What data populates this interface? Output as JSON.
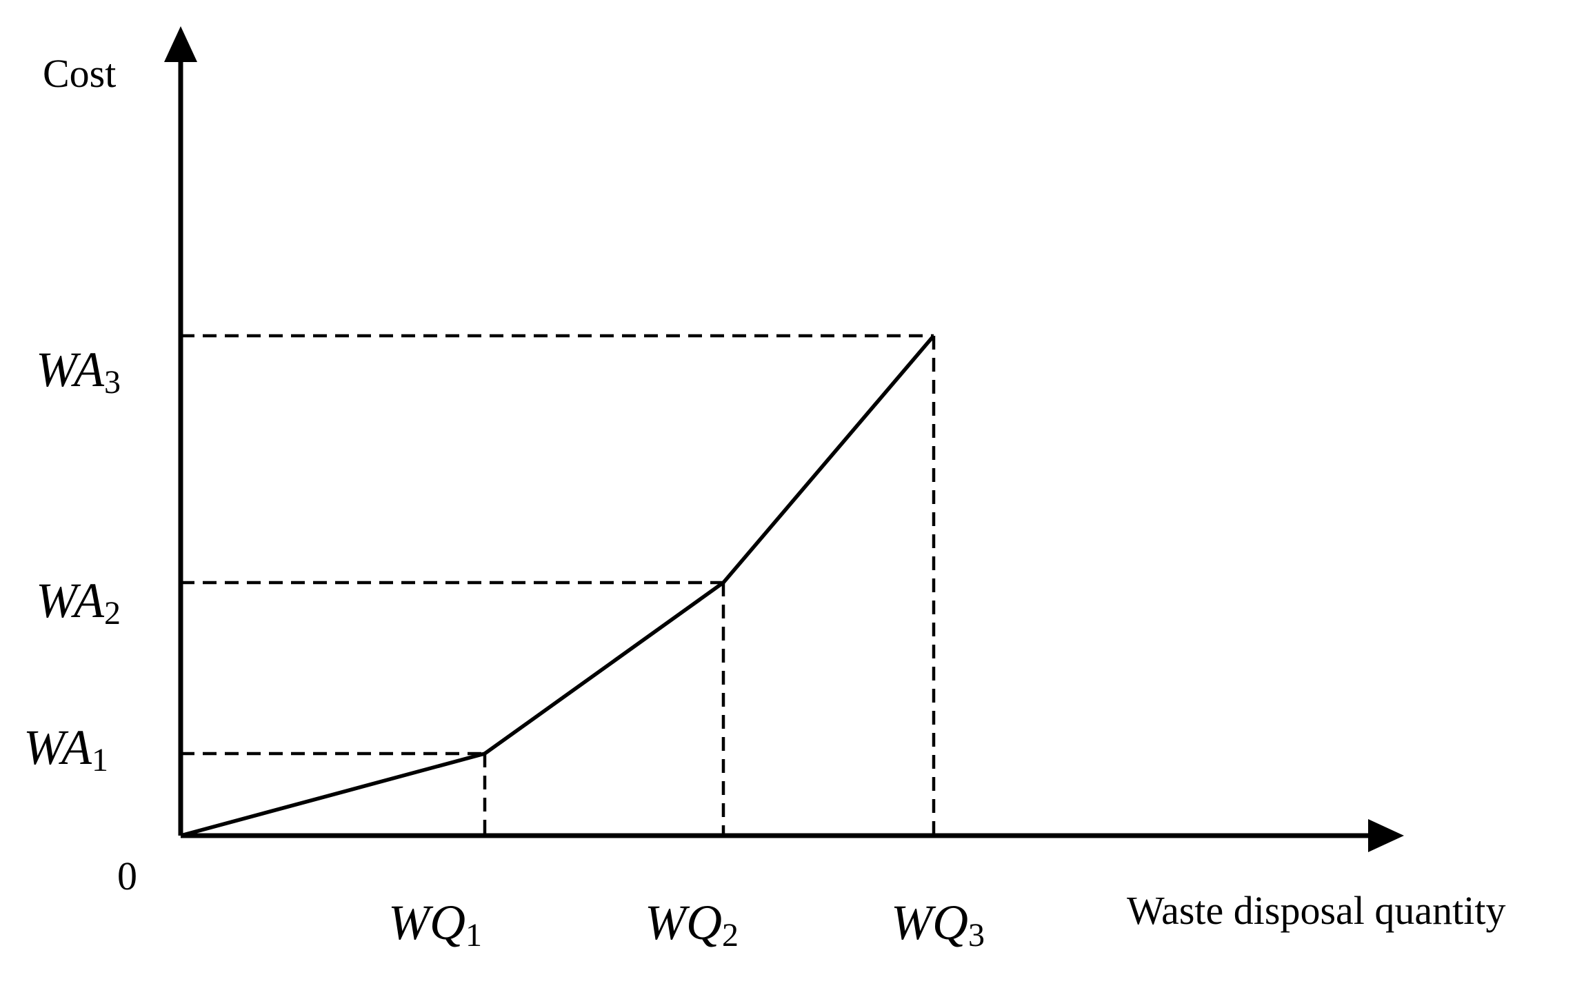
{
  "diagram": {
    "y_axis_label": "Cost",
    "x_axis_label": "Waste disposal quantity",
    "origin_label": "0",
    "breakpoints": [
      {
        "q_symbol": "WQ",
        "q_sub": "1",
        "a_symbol": "WA",
        "a_sub": "1"
      },
      {
        "q_symbol": "WQ",
        "q_sub": "2",
        "a_symbol": "WA",
        "a_sub": "2"
      },
      {
        "q_symbol": "WQ",
        "q_sub": "3",
        "a_symbol": "WA",
        "a_sub": "3"
      }
    ]
  }
}
